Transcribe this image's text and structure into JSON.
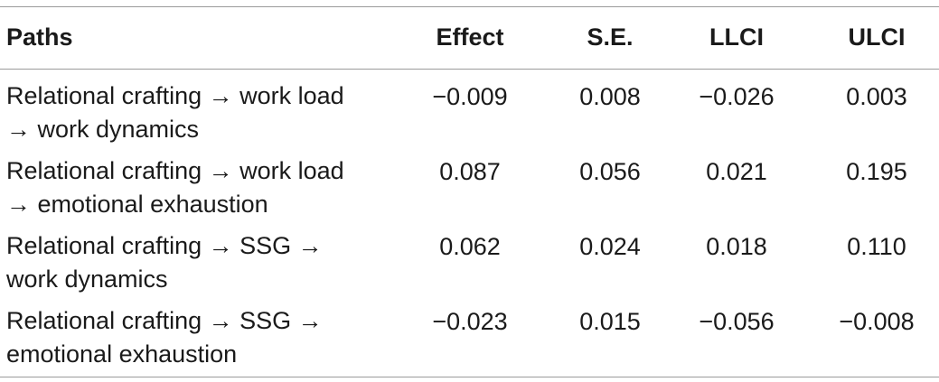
{
  "table": {
    "headers": {
      "paths": "Paths",
      "effect": "Effect",
      "se": "S.E.",
      "llci": "LLCI",
      "ulci": "ULCI"
    },
    "rows": [
      {
        "path_line1": "Relational crafting → work load",
        "path_line2": "→ work dynamics",
        "effect": "−0.009",
        "se": "0.008",
        "llci": "−0.026",
        "ulci": "0.003"
      },
      {
        "path_line1": "Relational crafting → work load",
        "path_line2": "→ emotional exhaustion",
        "effect": "0.087",
        "se": "0.056",
        "llci": "0.021",
        "ulci": "0.195"
      },
      {
        "path_line1": "Relational crafting → SSG →",
        "path_line2": "work dynamics",
        "effect": "0.062",
        "se": "0.024",
        "llci": "0.018",
        "ulci": "0.110"
      },
      {
        "path_line1": "Relational crafting → SSG →",
        "path_line2": "emotional exhaustion",
        "effect": "−0.023",
        "se": "0.015",
        "llci": "−0.056",
        "ulci": "−0.008"
      }
    ]
  }
}
